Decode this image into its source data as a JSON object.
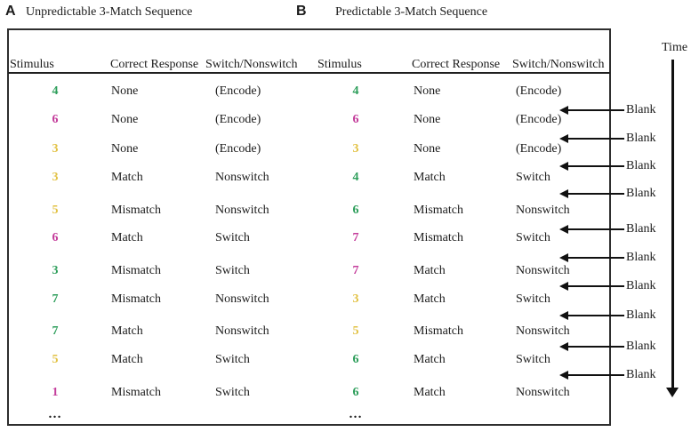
{
  "figure": {
    "panels": [
      {
        "letter": "A",
        "title": "Unpredictable 3-Match Sequence",
        "columns": [
          "Stimulus",
          "Correct Response",
          "Switch/Nonswitch"
        ],
        "rows": [
          {
            "stimulus": "4",
            "color": "green",
            "response": "None",
            "switch_type": "(Encode)"
          },
          {
            "stimulus": "6",
            "color": "magenta",
            "response": "None",
            "switch_type": "(Encode)"
          },
          {
            "stimulus": "3",
            "color": "yellow",
            "response": "None",
            "switch_type": "(Encode)"
          },
          {
            "stimulus": "3",
            "color": "yellow",
            "response": "Match",
            "switch_type": "Nonswitch"
          },
          {
            "stimulus": "5",
            "color": "yellow",
            "response": "Mismatch",
            "switch_type": "Nonswitch"
          },
          {
            "stimulus": "6",
            "color": "magenta",
            "response": "Match",
            "switch_type": "Switch"
          },
          {
            "stimulus": "3",
            "color": "green",
            "response": "Mismatch",
            "switch_type": "Switch"
          },
          {
            "stimulus": "7",
            "color": "green",
            "response": "Mismatch",
            "switch_type": "Nonswitch"
          },
          {
            "stimulus": "7",
            "color": "green",
            "response": "Match",
            "switch_type": "Nonswitch"
          },
          {
            "stimulus": "5",
            "color": "yellow",
            "response": "Match",
            "switch_type": "Switch"
          },
          {
            "stimulus": "1",
            "color": "magenta",
            "response": "Mismatch",
            "switch_type": "Switch"
          }
        ],
        "ellipsis": "…"
      },
      {
        "letter": "B",
        "title": "Predictable 3-Match Sequence",
        "columns": [
          "Stimulus",
          "Correct Response",
          "Switch/Nonswitch"
        ],
        "rows": [
          {
            "stimulus": "4",
            "color": "green",
            "response": "None",
            "switch_type": "(Encode)"
          },
          {
            "stimulus": "6",
            "color": "magenta",
            "response": "None",
            "switch_type": "(Encode)"
          },
          {
            "stimulus": "3",
            "color": "yellow",
            "response": "None",
            "switch_type": "(Encode)"
          },
          {
            "stimulus": "4",
            "color": "green",
            "response": "Match",
            "switch_type": "Switch"
          },
          {
            "stimulus": "6",
            "color": "green",
            "response": "Mismatch",
            "switch_type": "Nonswitch"
          },
          {
            "stimulus": "7",
            "color": "magenta",
            "response": "Mismatch",
            "switch_type": "Switch"
          },
          {
            "stimulus": "7",
            "color": "magenta",
            "response": "Match",
            "switch_type": "Nonswitch"
          },
          {
            "stimulus": "3",
            "color": "yellow",
            "response": "Match",
            "switch_type": "Switch"
          },
          {
            "stimulus": "5",
            "color": "yellow",
            "response": "Mismatch",
            "switch_type": "Nonswitch"
          },
          {
            "stimulus": "6",
            "color": "green",
            "response": "Match",
            "switch_type": "Switch"
          },
          {
            "stimulus": "6",
            "color": "green",
            "response": "Match",
            "switch_type": "Nonswitch"
          }
        ],
        "ellipsis": "…"
      }
    ],
    "timeline": {
      "time_label": "Time",
      "blank_labels": [
        "Blank",
        "Blank",
        "Blank",
        "Blank",
        "Blank",
        "Blank",
        "Blank",
        "Blank",
        "Blank",
        "Blank"
      ]
    },
    "stimulus_colors": {
      "green": "#2E9E5B",
      "magenta": "#C43D9B",
      "yellow": "#E2C245"
    }
  }
}
